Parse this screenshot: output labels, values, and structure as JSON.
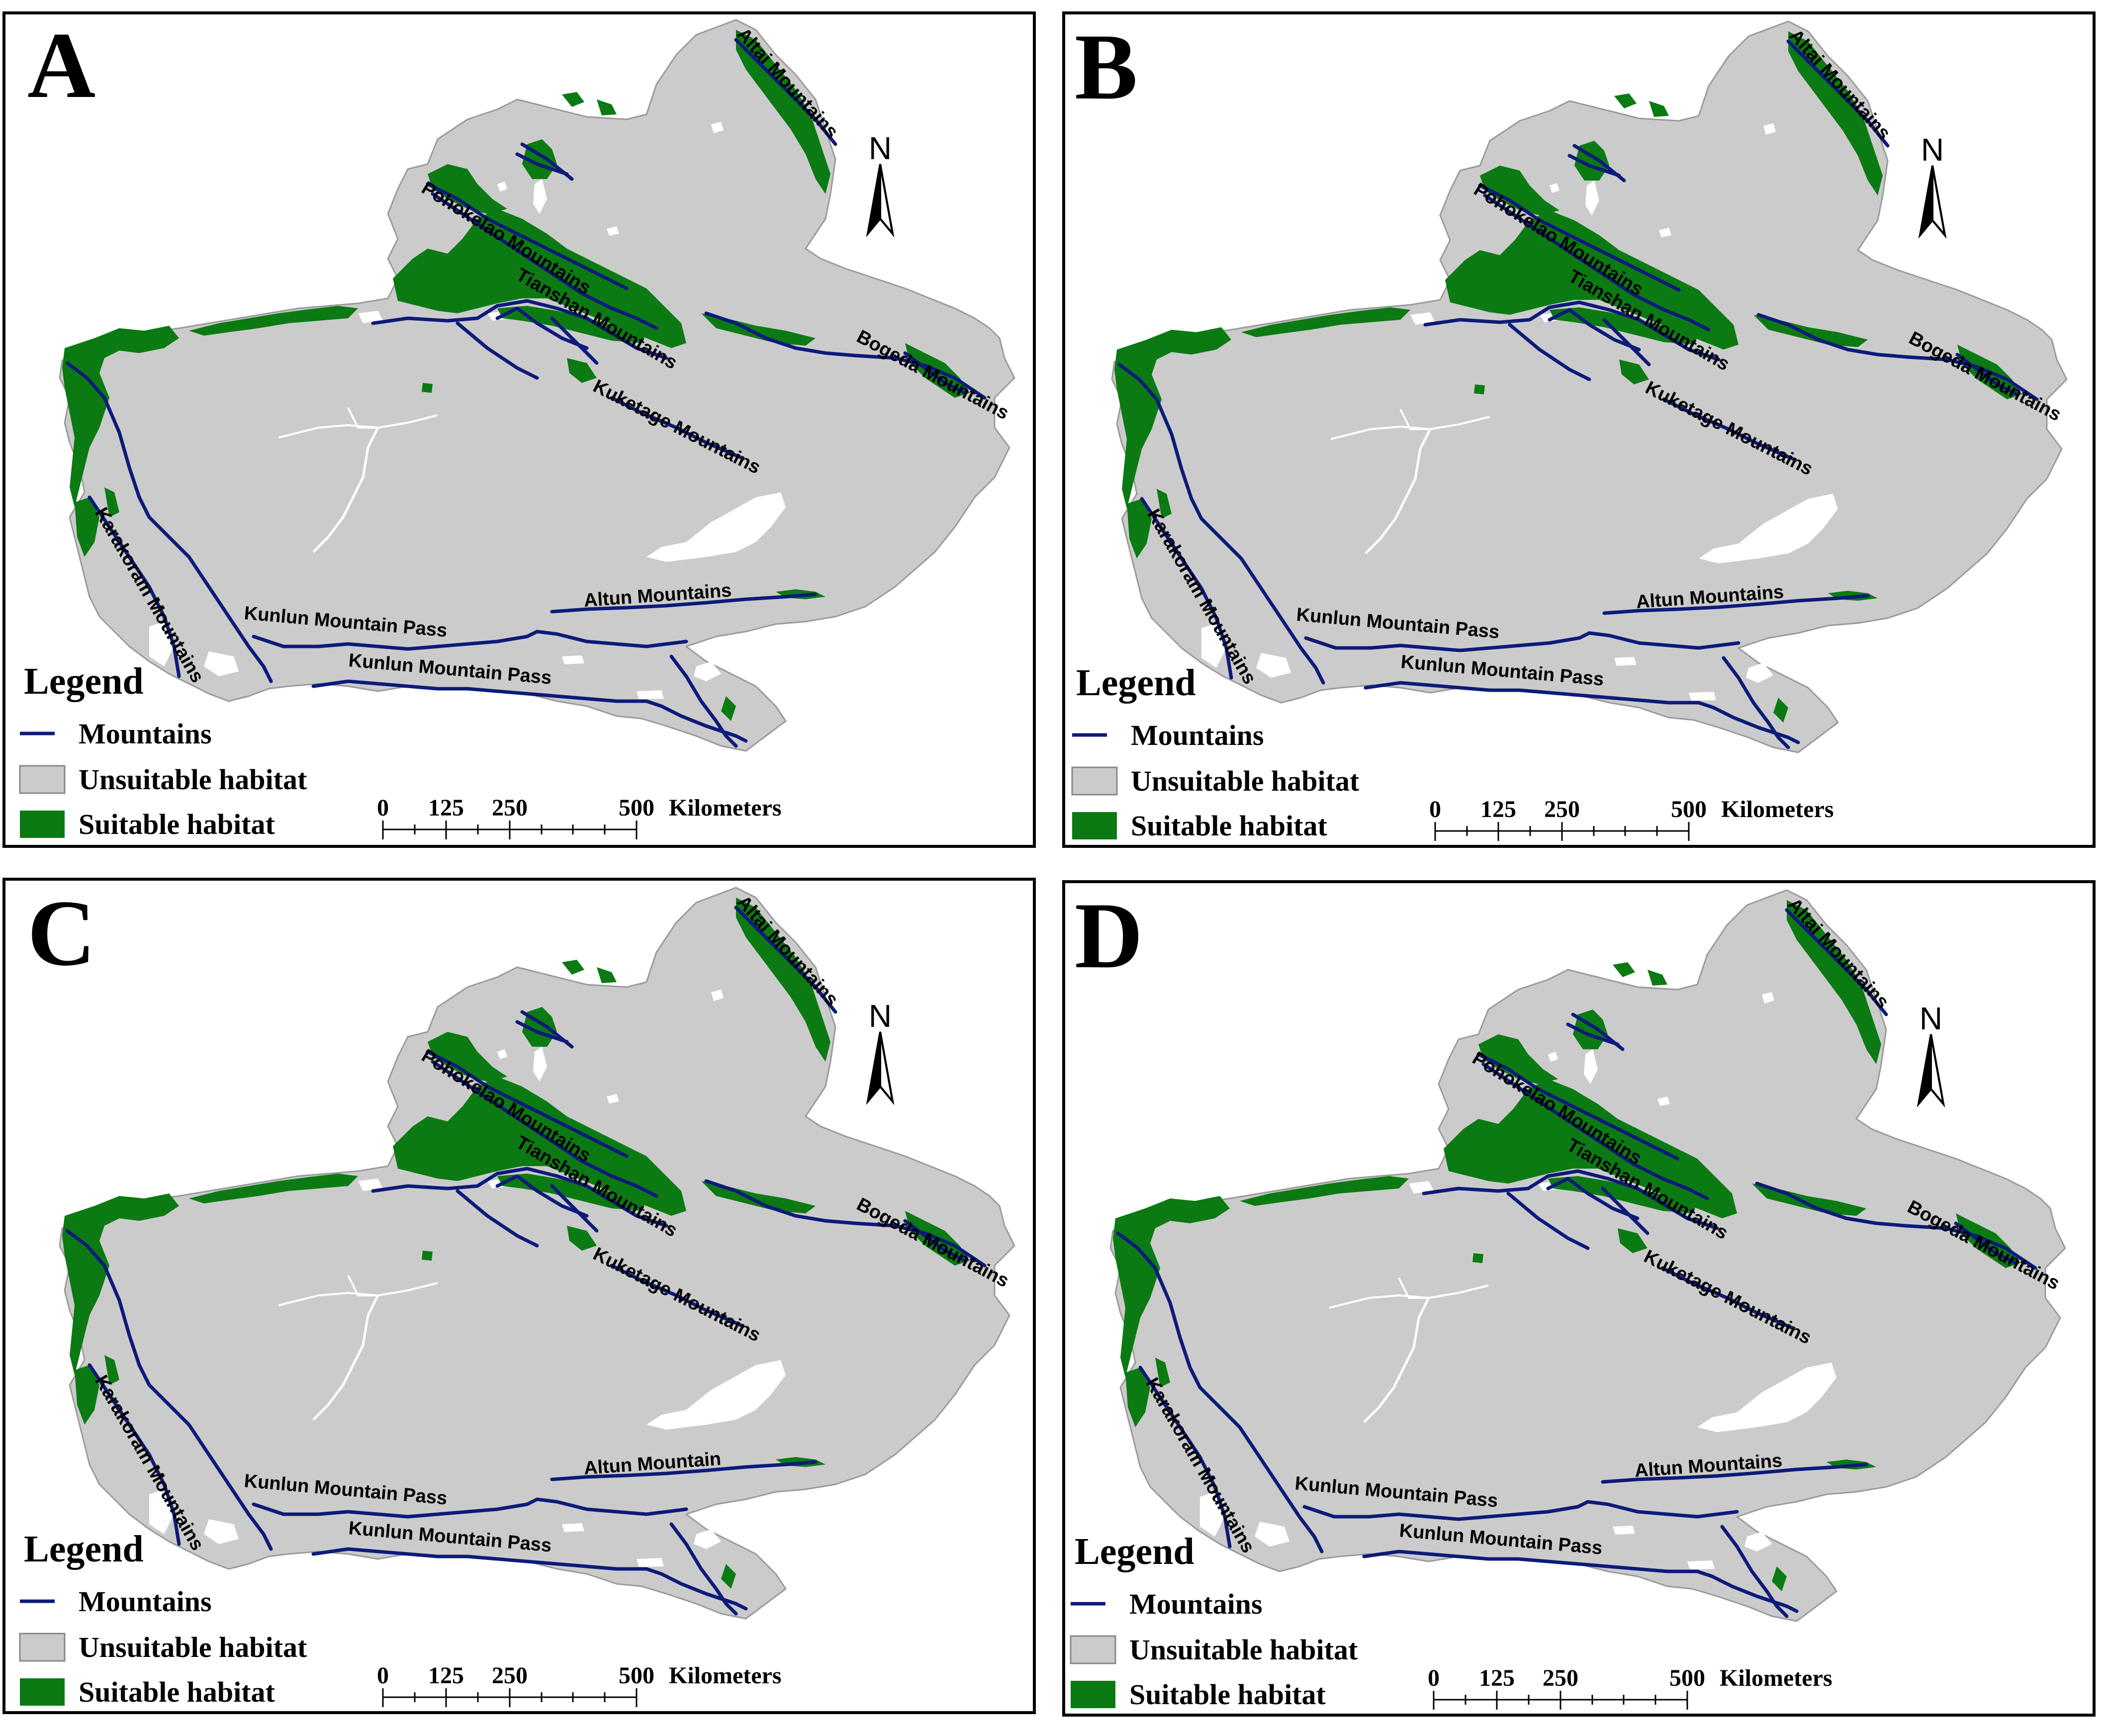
{
  "panels": [
    {
      "letter": "A",
      "mountains": [
        "Altai Mountains",
        "Pohokelao Mountains",
        "Tianshan Mountains",
        "Bogeda Mountains",
        "Kuketage Mountains",
        "Karakoram Mountains",
        "Kunlun Mountain Pass",
        "Kunlun Mountain Pass",
        "Altun Mountains"
      ]
    },
    {
      "letter": "B",
      "mountains": [
        "Altai Mountains",
        "Pohokelao Mountains",
        "Tianshan Mountains",
        "Bogeda Mountains",
        "Kuketage Mountains",
        "Karakoram Mountains",
        "Kunlun Mountain Pass",
        "Kunlun Mountain Pass",
        "Altun Mountains"
      ]
    },
    {
      "letter": "C",
      "mountains": [
        "Altai Mountains",
        "Pohokelao Mountains",
        "Tianshan Mountains",
        "Bogeda Mountains",
        "Kuketage Mountains",
        "Karakoram Mountains",
        "Kunlun Mountain Pass",
        "Kunlun Mountain Pass",
        "Altun Mountain"
      ]
    },
    {
      "letter": "D",
      "mountains": [
        "Altai Mountains",
        "Pohokelao Mountains",
        "Tianshan Mountains",
        "Bogeda Mountains",
        "Kuketage Mountains",
        "Karakoram Mountains",
        "Kunlun Mountain Pass",
        "Kunlun Mountain Pass",
        "Altun Mountains"
      ]
    }
  ],
  "legend": {
    "title": "Legend",
    "items": [
      {
        "label": "Mountains",
        "color": "#0d1a7a"
      },
      {
        "label": "Unsuitable habitat",
        "color": "#cbcbcb"
      },
      {
        "label": "Suitable habitat",
        "color": "#0b7a12"
      }
    ]
  },
  "scale_bar": {
    "labels": [
      "0",
      "125",
      "250",
      "500"
    ],
    "unit": "Kilometers"
  },
  "north_arrow": "N"
}
